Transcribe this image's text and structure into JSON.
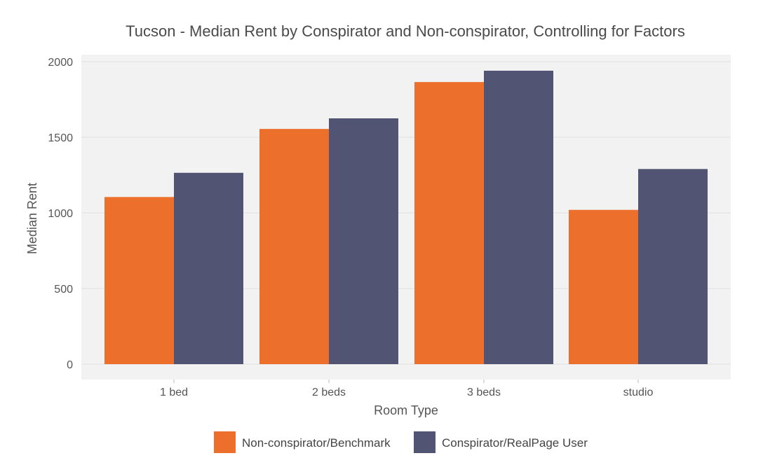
{
  "chart_data": {
    "type": "bar",
    "title": "Tucson - Median Rent by Conspirator and Non-conspirator, Controlling for Factors",
    "xlabel": "Room Type",
    "ylabel": "Median Rent",
    "categories": [
      "1 bed",
      "2 beds",
      "3 beds",
      "studio"
    ],
    "ylim": [
      0,
      2060
    ],
    "yticks": [
      0,
      500,
      1000,
      1500,
      2000
    ],
    "grid": true,
    "legend_position": "bottom",
    "series": [
      {
        "name": "Non-conspirator/Benchmark",
        "color": "#ec702c",
        "values": [
          1105,
          1555,
          1865,
          1020
        ]
      },
      {
        "name": "Conspirator/RealPage User",
        "color": "#525473",
        "values": [
          1265,
          1625,
          1940,
          1290
        ]
      }
    ],
    "colors": {
      "panel_background": "#f2f2f2",
      "gridline": "#e0e0e0"
    }
  }
}
